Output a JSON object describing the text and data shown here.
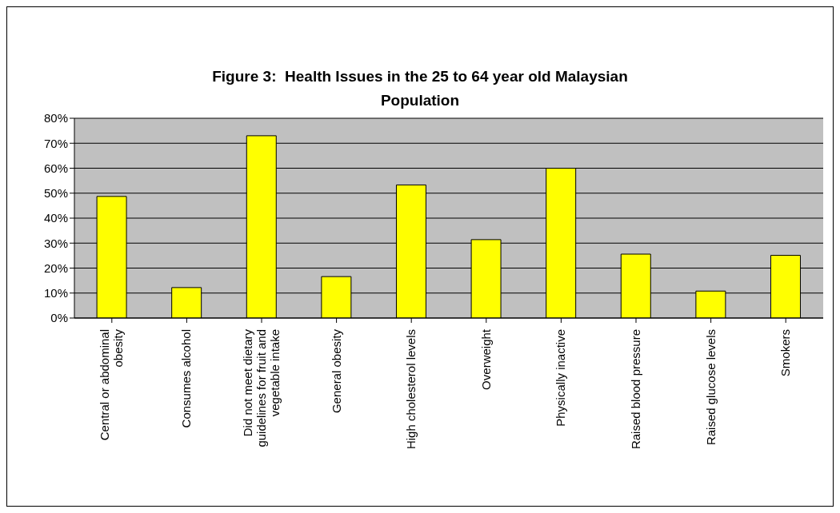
{
  "chart_data": {
    "type": "bar",
    "title": "Figure 3:  Health Issues in the 25 to 64 year old Malaysian Population",
    "categories": [
      "Central or abdominal obesity",
      "Consumes alcohol",
      "Did not meet dietary guidelines for fruit and vegetable intake",
      "General obesity",
      "High cholesterol levels",
      "Overweight",
      "Physically inactive",
      "Raised blood pressure",
      "Raised glucose levels",
      "Smokers"
    ],
    "values": [
      48.7,
      12.2,
      73,
      16.6,
      53.3,
      31.4,
      60,
      25.6,
      10.8,
      25.1
    ],
    "color": "#ffff00",
    "ylim": [
      0,
      80
    ],
    "yticks": [
      {
        "value": 0,
        "label": "0%"
      },
      {
        "value": 10,
        "label": "10%"
      },
      {
        "value": 20,
        "label": "20%"
      },
      {
        "value": 30,
        "label": "30%"
      },
      {
        "value": 40,
        "label": "40%"
      },
      {
        "value": 50,
        "label": "50%"
      },
      {
        "value": 60,
        "label": "60%"
      },
      {
        "value": 70,
        "label": "70%"
      },
      {
        "value": 80,
        "label": "80%"
      }
    ],
    "grid": "y",
    "legend": false
  }
}
